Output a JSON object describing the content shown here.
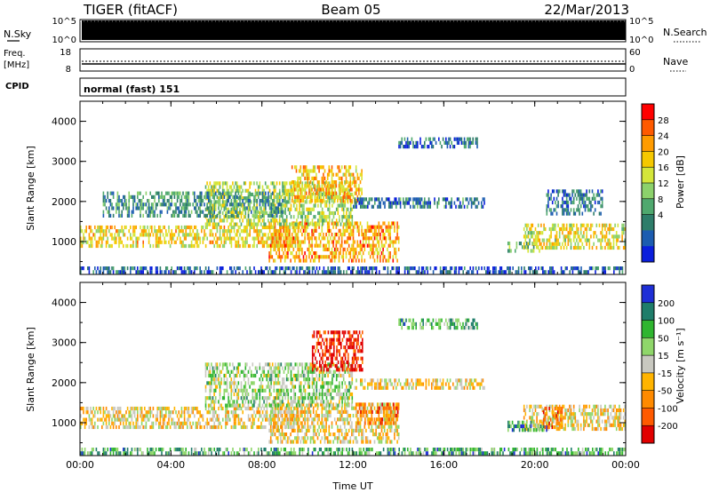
{
  "header": {
    "station": "TIGER (fitACF)",
    "beam": "Beam 05",
    "date": "22/Mar/2013"
  },
  "noise_panel": {
    "left_label": "N.Sky",
    "right_label": "N.Search",
    "left_ticks": [
      "10^5",
      "10^0"
    ],
    "right_ticks": [
      "10^5",
      "10^0"
    ]
  },
  "freq_panel": {
    "left_label": "Freq.",
    "left_unit": "[MHz]",
    "right_label": "Nave",
    "left_ticks": [
      "18",
      "8"
    ],
    "right_ticks": [
      "60",
      "0"
    ]
  },
  "cpid_panel": {
    "label": "CPID",
    "mode_text": "normal (fast) 151"
  },
  "chart_data": [
    {
      "type": "heatmap",
      "quantity": "Power",
      "ylabel": "Slant Range [km]",
      "yticks": [
        1000,
        2000,
        3000,
        4000
      ],
      "ylim": [
        180,
        4500
      ],
      "xticks": [
        "00:00",
        "04:00",
        "08:00",
        "12:00",
        "16:00",
        "20:00",
        "00:00"
      ],
      "xlim_hours": [
        0,
        24
      ],
      "colorbar": {
        "label": "Power [dB]",
        "ticks": [
          "28",
          "24",
          "20",
          "16",
          "12",
          "8",
          "4"
        ],
        "colors": [
          "#ff0000",
          "#ff5a00",
          "#ff9b00",
          "#f5c800",
          "#d4e63a",
          "#8cd16b",
          "#4fa86e",
          "#2e7d6a",
          "#1c5cb0",
          "#0a1edc"
        ]
      },
      "regions": [
        {
          "t0": 0,
          "t1": 9.6,
          "r0": 880,
          "r1": 1400,
          "level": 0.62
        },
        {
          "t0": 8.3,
          "t1": 14,
          "r0": 520,
          "r1": 1500,
          "level": 0.72
        },
        {
          "t0": 5.5,
          "t1": 12,
          "r0": 1450,
          "r1": 2500,
          "level": 0.5
        },
        {
          "t0": 9.3,
          "t1": 12.4,
          "r0": 2050,
          "r1": 2900,
          "level": 0.68
        },
        {
          "t0": 1,
          "t1": 9,
          "r0": 1650,
          "r1": 2250,
          "level": 0.3
        },
        {
          "t0": 12,
          "t1": 17.8,
          "r0": 1850,
          "r1": 2100,
          "level": 0.22
        },
        {
          "t0": 14,
          "t1": 17.5,
          "r0": 3350,
          "r1": 3600,
          "level": 0.2
        },
        {
          "t0": 19.5,
          "t1": 24,
          "r0": 800,
          "r1": 1450,
          "level": 0.58
        },
        {
          "t0": 18.8,
          "t1": 20.2,
          "r0": 780,
          "r1": 1000,
          "level": 0.4
        },
        {
          "t0": 20.5,
          "t1": 23,
          "r0": 1700,
          "r1": 2300,
          "level": 0.2
        },
        {
          "t0": 0,
          "t1": 24,
          "r0": 200,
          "r1": 380,
          "level": 0.15
        }
      ]
    },
    {
      "type": "heatmap",
      "quantity": "Velocity",
      "ylabel": "Slant Range [km]",
      "yticks": [
        1000,
        2000,
        3000,
        4000
      ],
      "ylim": [
        180,
        4500
      ],
      "xticks": [
        "00:00",
        "04:00",
        "08:00",
        "12:00",
        "16:00",
        "20:00",
        "00:00"
      ],
      "xlim_hours": [
        0,
        24
      ],
      "xlabel": "Time UT",
      "colorbar": {
        "label": "Velocity [m s⁻¹]",
        "ticks": [
          "200",
          "100",
          "50",
          "15",
          "-15",
          "-50",
          "-100",
          "-200"
        ],
        "colors": [
          "#1e2fd6",
          "#1f7d6a",
          "#2fb52f",
          "#8fd66a",
          "#c8c8c0",
          "#ffb400",
          "#ff8a00",
          "#ff5a00",
          "#e10000"
        ]
      },
      "regions": [
        {
          "t0": 0,
          "t1": 9.6,
          "r0": 880,
          "r1": 1400,
          "level": 0.45
        },
        {
          "t0": 8.3,
          "t1": 14,
          "r0": 520,
          "r1": 1500,
          "level": 0.45
        },
        {
          "t0": 12.2,
          "t1": 14,
          "r0": 1000,
          "r1": 1500,
          "level": 0.25
        },
        {
          "t0": 5.5,
          "t1": 12,
          "r0": 1450,
          "r1": 2500,
          "level": 0.6
        },
        {
          "t0": 10.2,
          "t1": 12.4,
          "r0": 2300,
          "r1": 3300,
          "level": 0.05
        },
        {
          "t0": 12,
          "t1": 17.8,
          "r0": 1850,
          "r1": 2100,
          "level": 0.45
        },
        {
          "t0": 14,
          "t1": 17.5,
          "r0": 3350,
          "r1": 3600,
          "level": 0.7
        },
        {
          "t0": 19.5,
          "t1": 24,
          "r0": 800,
          "r1": 1450,
          "level": 0.45
        },
        {
          "t0": 18.8,
          "t1": 20.5,
          "r0": 780,
          "r1": 1050,
          "level": 0.75
        },
        {
          "t0": 20.3,
          "t1": 21.2,
          "r0": 900,
          "r1": 1400,
          "level": 0.25
        },
        {
          "t0": 0,
          "t1": 24,
          "r0": 200,
          "r1": 380,
          "level": 0.72
        }
      ]
    }
  ]
}
